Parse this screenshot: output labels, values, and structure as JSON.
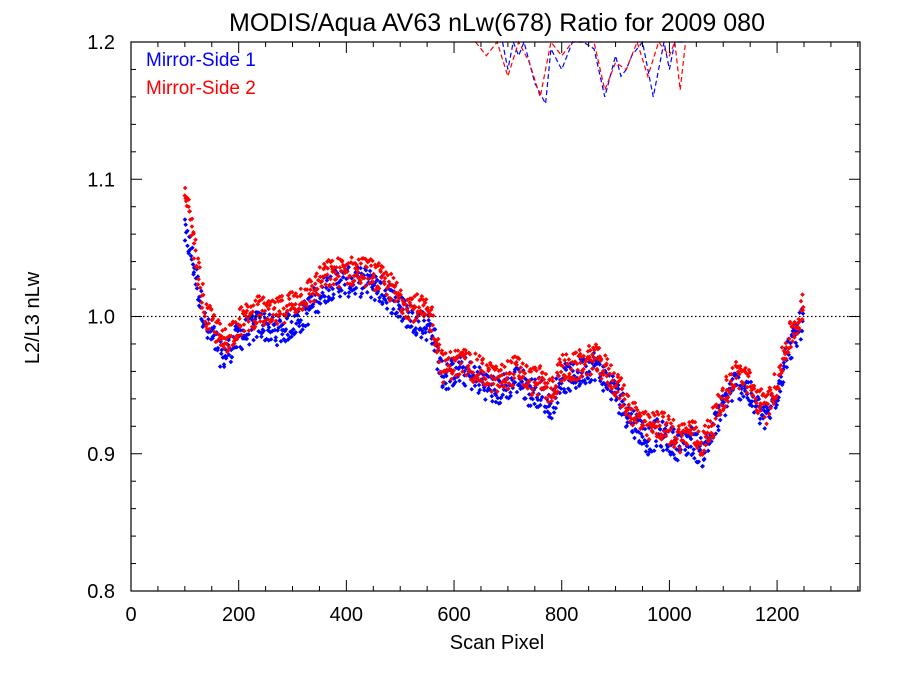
{
  "chart_data": {
    "type": "scatter",
    "title": "MODIS/Aqua AV63 nLw(678) Ratio for 2009 080",
    "xlabel": "Scan Pixel",
    "ylabel": "L2/L3 nLw",
    "xlim": [
      0,
      1354
    ],
    "ylim": [
      0.8,
      1.2
    ],
    "xticks": [
      "0",
      "200",
      "400",
      "600",
      "800",
      "1000",
      "1200"
    ],
    "yticks": [
      "0.8",
      "0.9",
      "1.0",
      "1.1",
      "1.2"
    ],
    "reference_line": 1.0,
    "legend_position": "top-left",
    "series": [
      {
        "name": "Mirror-Side 1",
        "color": "#0000ff",
        "trend": [
          [
            100,
            1.06
          ],
          [
            110,
            1.05
          ],
          [
            120,
            1.03
          ],
          [
            130,
            1.01
          ],
          [
            140,
            0.99
          ],
          [
            150,
            0.985
          ],
          [
            160,
            0.98
          ],
          [
            170,
            0.97
          ],
          [
            180,
            0.975
          ],
          [
            200,
            0.985
          ],
          [
            220,
            0.99
          ],
          [
            240,
            0.995
          ],
          [
            260,
            0.99
          ],
          [
            280,
            0.99
          ],
          [
            300,
            0.995
          ],
          [
            320,
            1.0
          ],
          [
            340,
            1.01
          ],
          [
            360,
            1.02
          ],
          [
            380,
            1.025
          ],
          [
            400,
            1.025
          ],
          [
            420,
            1.025
          ],
          [
            440,
            1.025
          ],
          [
            460,
            1.02
          ],
          [
            480,
            1.015
          ],
          [
            500,
            1.005
          ],
          [
            520,
            1.0
          ],
          [
            540,
            0.995
          ],
          [
            560,
            0.99
          ],
          [
            570,
            0.97
          ],
          [
            580,
            0.955
          ],
          [
            600,
            0.96
          ],
          [
            620,
            0.96
          ],
          [
            640,
            0.955
          ],
          [
            660,
            0.95
          ],
          [
            680,
            0.945
          ],
          [
            700,
            0.95
          ],
          [
            720,
            0.955
          ],
          [
            740,
            0.945
          ],
          [
            760,
            0.945
          ],
          [
            780,
            0.935
          ],
          [
            800,
            0.955
          ],
          [
            820,
            0.955
          ],
          [
            840,
            0.96
          ],
          [
            860,
            0.965
          ],
          [
            880,
            0.955
          ],
          [
            900,
            0.945
          ],
          [
            920,
            0.93
          ],
          [
            940,
            0.92
          ],
          [
            960,
            0.91
          ],
          [
            980,
            0.915
          ],
          [
            1000,
            0.91
          ],
          [
            1020,
            0.905
          ],
          [
            1040,
            0.91
          ],
          [
            1060,
            0.9
          ],
          [
            1080,
            0.915
          ],
          [
            1100,
            0.935
          ],
          [
            1120,
            0.95
          ],
          [
            1140,
            0.95
          ],
          [
            1160,
            0.935
          ],
          [
            1180,
            0.925
          ],
          [
            1200,
            0.945
          ],
          [
            1220,
            0.975
          ],
          [
            1240,
            0.99
          ],
          [
            1250,
            1.0
          ]
        ],
        "dashed_line": [
          [
            690,
            1.2
          ],
          [
            700,
            1.18
          ],
          [
            710,
            1.2
          ],
          [
            720,
            1.19
          ],
          [
            730,
            1.2
          ],
          [
            750,
            1.17
          ],
          [
            770,
            1.155
          ],
          [
            780,
            1.195
          ],
          [
            800,
            1.18
          ],
          [
            820,
            1.2
          ],
          [
            840,
            1.2
          ],
          [
            860,
            1.195
          ],
          [
            880,
            1.16
          ],
          [
            900,
            1.19
          ],
          [
            910,
            1.175
          ],
          [
            920,
            1.18
          ],
          [
            930,
            1.19
          ],
          [
            950,
            1.2
          ],
          [
            970,
            1.16
          ],
          [
            990,
            1.2
          ],
          [
            1000,
            1.18
          ],
          [
            1010,
            1.2
          ],
          [
            1030,
            1.2
          ]
        ]
      },
      {
        "name": "Mirror-Side 2",
        "color": "#ff0000",
        "trend": [
          [
            100,
            1.085
          ],
          [
            110,
            1.07
          ],
          [
            120,
            1.045
          ],
          [
            130,
            1.02
          ],
          [
            140,
            1.0
          ],
          [
            150,
            0.995
          ],
          [
            160,
            0.99
          ],
          [
            170,
            0.98
          ],
          [
            180,
            0.985
          ],
          [
            200,
            0.995
          ],
          [
            220,
            1.0
          ],
          [
            240,
            1.005
          ],
          [
            260,
            1.0
          ],
          [
            280,
            1.005
          ],
          [
            300,
            1.01
          ],
          [
            320,
            1.015
          ],
          [
            340,
            1.02
          ],
          [
            360,
            1.03
          ],
          [
            380,
            1.032
          ],
          [
            400,
            1.033
          ],
          [
            420,
            1.033
          ],
          [
            440,
            1.033
          ],
          [
            460,
            1.028
          ],
          [
            480,
            1.022
          ],
          [
            500,
            1.013
          ],
          [
            520,
            1.008
          ],
          [
            540,
            1.004
          ],
          [
            560,
            0.998
          ],
          [
            570,
            0.978
          ],
          [
            580,
            0.962
          ],
          [
            600,
            0.966
          ],
          [
            620,
            0.966
          ],
          [
            640,
            0.962
          ],
          [
            660,
            0.958
          ],
          [
            680,
            0.953
          ],
          [
            700,
            0.958
          ],
          [
            720,
            0.962
          ],
          [
            740,
            0.953
          ],
          [
            760,
            0.953
          ],
          [
            780,
            0.945
          ],
          [
            800,
            0.962
          ],
          [
            820,
            0.962
          ],
          [
            840,
            0.966
          ],
          [
            860,
            0.97
          ],
          [
            880,
            0.962
          ],
          [
            900,
            0.952
          ],
          [
            920,
            0.937
          ],
          [
            940,
            0.927
          ],
          [
            960,
            0.918
          ],
          [
            980,
            0.922
          ],
          [
            1000,
            0.917
          ],
          [
            1020,
            0.912
          ],
          [
            1040,
            0.917
          ],
          [
            1060,
            0.907
          ],
          [
            1080,
            0.922
          ],
          [
            1100,
            0.942
          ],
          [
            1120,
            0.957
          ],
          [
            1140,
            0.957
          ],
          [
            1160,
            0.942
          ],
          [
            1180,
            0.932
          ],
          [
            1200,
            0.953
          ],
          [
            1220,
            0.982
          ],
          [
            1240,
            0.997
          ],
          [
            1250,
            1.01
          ]
        ],
        "dashed_line": [
          [
            640,
            1.2
          ],
          [
            660,
            1.19
          ],
          [
            680,
            1.2
          ],
          [
            700,
            1.175
          ],
          [
            720,
            1.2
          ],
          [
            740,
            1.185
          ],
          [
            760,
            1.16
          ],
          [
            780,
            1.2
          ],
          [
            800,
            1.19
          ],
          [
            820,
            1.2
          ],
          [
            840,
            1.2
          ],
          [
            860,
            1.2
          ],
          [
            880,
            1.165
          ],
          [
            900,
            1.185
          ],
          [
            920,
            1.18
          ],
          [
            940,
            1.2
          ],
          [
            960,
            1.175
          ],
          [
            980,
            1.2
          ],
          [
            1000,
            1.19
          ],
          [
            1010,
            1.2
          ],
          [
            1020,
            1.165
          ],
          [
            1030,
            1.2
          ]
        ]
      }
    ]
  }
}
